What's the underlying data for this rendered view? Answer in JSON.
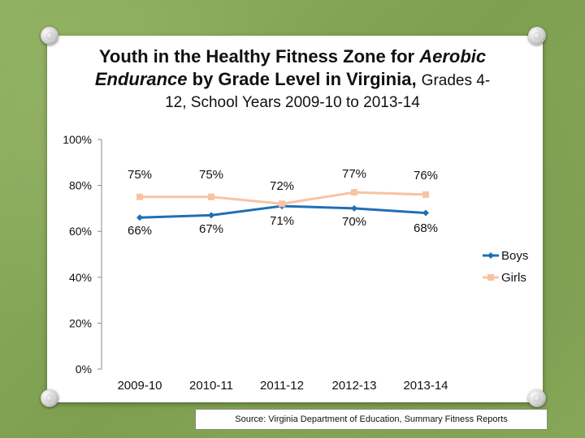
{
  "title": {
    "part1": "Youth in the Healthy Fitness Zone for ",
    "italic1": "Aerobic",
    "part2": "Endurance",
    "part3": " by Grade Level in Virginia, ",
    "part4": "Grades 4-",
    "subtitle": "12, School Years 2009-10 to 2013-14"
  },
  "source": "Source: Virginia Department of Education, Summary Fitness Reports",
  "chart_data": {
    "type": "line",
    "title": "Youth in the Healthy Fitness Zone for Aerobic Endurance by Grade Level in Virginia, Grades 4-12, School Years 2009-10 to 2013-14",
    "categories": [
      "2009-10",
      "2010-11",
      "2011-12",
      "2012-13",
      "2013-14"
    ],
    "ylim": [
      0,
      100
    ],
    "yticks": [
      0,
      20,
      40,
      60,
      80,
      100
    ],
    "ytick_labels": [
      "0%",
      "20%",
      "40%",
      "60%",
      "80%",
      "100%"
    ],
    "legend_position": "right",
    "series": [
      {
        "name": "Boys",
        "color": "#1f6fb5",
        "marker": "diamond",
        "values": [
          66,
          67,
          71,
          70,
          68
        ],
        "labels": [
          "66%",
          "67%",
          "71%",
          "70%",
          "68%"
        ]
      },
      {
        "name": "Girls",
        "color": "#f8c3a3",
        "marker": "square",
        "values": [
          75,
          75,
          72,
          77,
          76
        ],
        "labels": [
          "75%",
          "75%",
          "72%",
          "77%",
          "76%"
        ]
      }
    ]
  }
}
